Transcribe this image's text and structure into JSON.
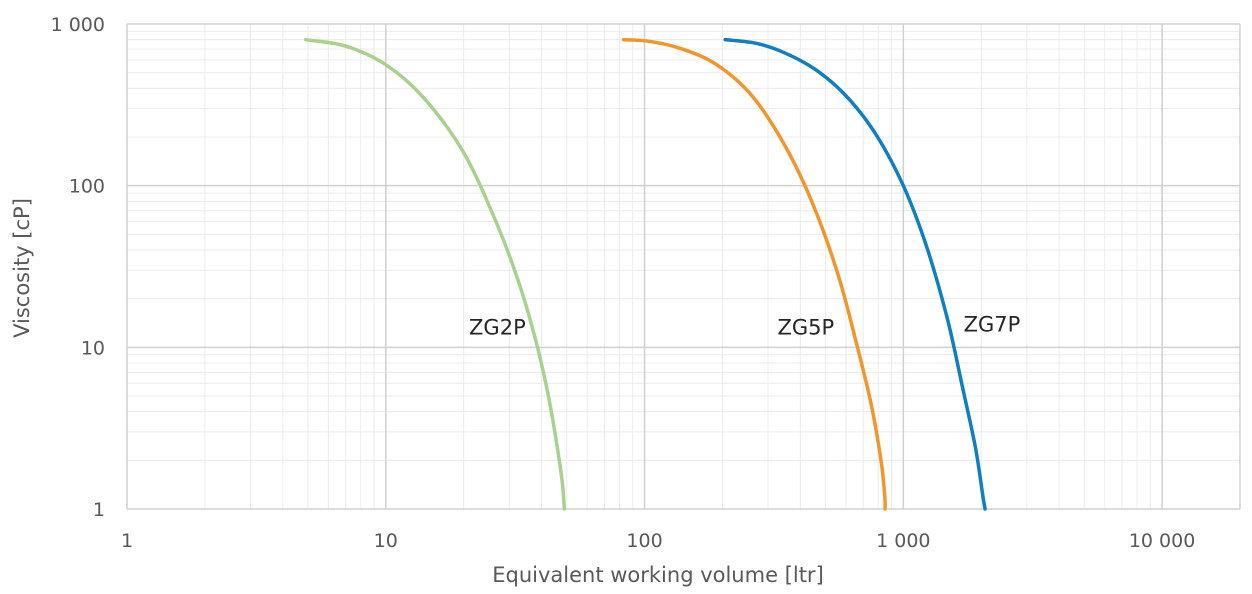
{
  "chart_data": {
    "type": "line",
    "title": "",
    "xlabel": "Equivalent working volume [ltr]",
    "ylabel": "Viscosity [cP]",
    "x_scale": "log",
    "y_scale": "log",
    "xlim": [
      1,
      20000
    ],
    "ylim": [
      1,
      1000
    ],
    "x_ticks": [
      1,
      10,
      100,
      1000,
      10000
    ],
    "x_tick_labels": [
      "1",
      "10",
      "100",
      "1 000",
      "10 000"
    ],
    "y_ticks": [
      1,
      10,
      100,
      1000
    ],
    "y_tick_labels": [
      "1",
      "10",
      "100",
      "1 000"
    ],
    "grid": true,
    "minor_grid": true,
    "legend": "none",
    "series": [
      {
        "name": "ZG2P",
        "color": "#a9d18e",
        "label_at": [
          27,
          12
        ],
        "x": [
          4.9,
          7,
          10,
          14,
          20,
          27,
          33,
          38,
          42,
          45,
          48,
          49
        ],
        "y": [
          800,
          730,
          560,
          350,
          160,
          57,
          24,
          11,
          5.5,
          3,
          1.5,
          1
        ]
      },
      {
        "name": "ZG5P",
        "color": "#f0962a",
        "label_at": [
          420,
          12
        ],
        "x": [
          83,
          105,
          140,
          190,
          260,
          350,
          450,
          560,
          660,
          750,
          820,
          848,
          850
        ],
        "y": [
          800,
          780,
          700,
          560,
          360,
          175,
          75,
          28,
          10.5,
          4.5,
          2,
          1.2,
          1
        ]
      },
      {
        "name": "ZG7P",
        "color": "#0f7fbf",
        "label_at": [
          2200,
          12.5
        ],
        "x": [
          205,
          270,
          350,
          460,
          600,
          780,
          1000,
          1230,
          1480,
          1700,
          1900,
          2030,
          2070
        ],
        "y": [
          800,
          760,
          660,
          520,
          360,
          210,
          100,
          42,
          15,
          5.5,
          2.4,
          1.2,
          1
        ]
      }
    ]
  }
}
